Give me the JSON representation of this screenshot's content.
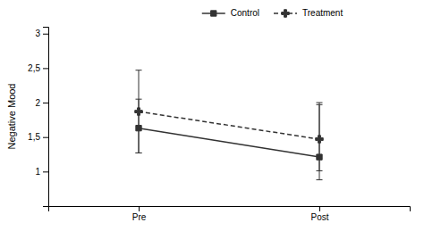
{
  "chart_data": {
    "type": "line",
    "categories": [
      "Pre",
      "Post"
    ],
    "y_label": "Negative Mood",
    "ylim": [
      0.5,
      3.1
    ],
    "yticks": [
      1,
      {
        "value": 1.5,
        "label": "1,5"
      },
      2,
      {
        "value": 2.5,
        "label": "2,5"
      },
      3
    ],
    "grid": false,
    "legend": "top",
    "series": [
      {
        "name": "Control",
        "color": "#333333",
        "marker": "square",
        "line_style": "solid",
        "values": [
          1.63,
          1.21
        ],
        "error_low": [
          0.36,
          0.2
        ],
        "error_high": [
          0.84,
          0.76
        ]
      },
      {
        "name": "Treatment",
        "color": "#333333",
        "marker": "plus",
        "line_style": "dashed",
        "values": [
          1.87,
          1.47
        ],
        "error_low": [
          0.6,
          0.59
        ],
        "error_high": [
          0.18,
          0.53
        ]
      }
    ]
  }
}
